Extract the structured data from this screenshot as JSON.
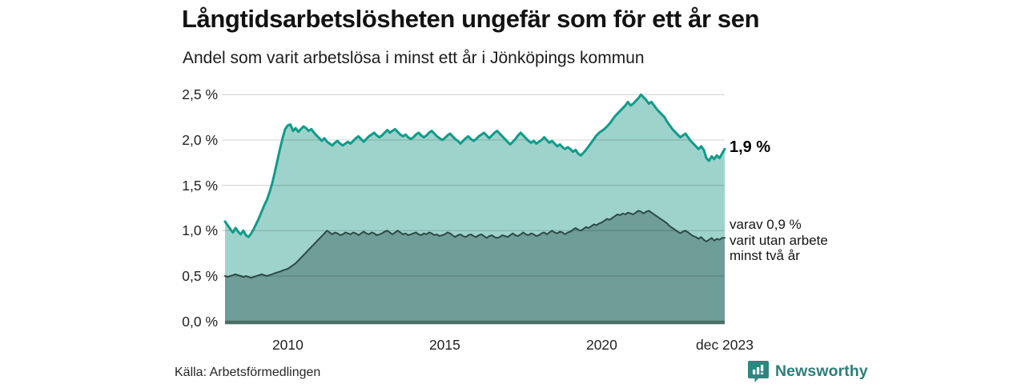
{
  "header": {
    "title": "Långtidsarbetslösheten ungefär som för ett år sen",
    "subtitle": "Andel som varit arbetslösa i minst ett år i Jönköpings kommun"
  },
  "annotations": {
    "primary": {
      "label": "1,9 %"
    },
    "secondary": {
      "lines": [
        "varav 0,9 %",
        "varit utan arbete",
        "minst två år"
      ]
    }
  },
  "footer": {
    "source": "Källa: Arbetsförmedlingen",
    "brand": "Newsworthy",
    "brand_icon": "bar-chart-speech-bubble-icon",
    "brand_color": "#2d7e78"
  },
  "chart_data": {
    "type": "area",
    "title": "Långtidsarbetslösheten ungefär som för ett år sen",
    "subtitle": "Andel som varit arbetslösa i minst ett år i Jönköpings kommun",
    "grid": true,
    "x_unit": "month",
    "x_start_year": 2008,
    "x_end_label": "dec 2023",
    "ylim": [
      0,
      2.5
    ],
    "yticks": [
      {
        "value": 0.0,
        "label": "0,0 %"
      },
      {
        "value": 0.5,
        "label": "0,5 %"
      },
      {
        "value": 1.0,
        "label": "1,0 %"
      },
      {
        "value": 1.5,
        "label": "1,5 %"
      },
      {
        "value": 2.0,
        "label": "2,0 %"
      },
      {
        "value": 2.5,
        "label": "2,5 %"
      }
    ],
    "xticks": [
      {
        "year": 2010.0,
        "label": "2010"
      },
      {
        "year": 2015.0,
        "label": "2015"
      },
      {
        "year": 2020.0,
        "label": "2020"
      },
      {
        "year": 2023.9167,
        "label": "dec 2023"
      }
    ],
    "colors": {
      "series1_line": "#109b8a",
      "series1_fill": "#9ed3cb",
      "series2_line": "#2d4b46",
      "series2_fill": "#6f9d98",
      "baseline": "#4a6e66",
      "gridline": "rgba(0,0,0,0.14)"
    },
    "series": [
      {
        "name": "Andel arbetslösa minst ett år",
        "last_value_label": "1,9 %",
        "last_value": 1.9,
        "values": [
          1.1,
          1.06,
          1.02,
          0.98,
          1.03,
          0.99,
          0.96,
          1.0,
          0.95,
          0.93,
          0.97,
          1.02,
          1.08,
          1.14,
          1.21,
          1.28,
          1.34,
          1.42,
          1.52,
          1.64,
          1.77,
          1.9,
          2.02,
          2.12,
          2.16,
          2.17,
          2.1,
          2.13,
          2.09,
          2.12,
          2.15,
          2.13,
          2.1,
          2.12,
          2.08,
          2.05,
          2.02,
          1.99,
          2.02,
          1.98,
          1.96,
          1.94,
          1.97,
          1.99,
          1.96,
          1.94,
          1.96,
          1.98,
          1.96,
          1.99,
          2.02,
          2.04,
          2.01,
          1.98,
          2.01,
          2.04,
          2.06,
          2.08,
          2.05,
          2.03,
          2.05,
          2.08,
          2.11,
          2.08,
          2.1,
          2.12,
          2.09,
          2.06,
          2.04,
          2.06,
          2.03,
          2.01,
          2.03,
          2.06,
          2.08,
          2.05,
          2.03,
          2.05,
          2.08,
          2.1,
          2.07,
          2.04,
          2.02,
          2.0,
          2.02,
          2.05,
          2.07,
          2.04,
          2.01,
          1.99,
          1.96,
          1.99,
          2.02,
          2.04,
          2.01,
          1.99,
          2.01,
          2.04,
          2.06,
          2.08,
          2.05,
          2.02,
          2.05,
          2.08,
          2.1,
          2.07,
          2.04,
          2.01,
          1.98,
          1.95,
          1.98,
          2.01,
          2.05,
          2.08,
          2.05,
          2.02,
          1.99,
          1.97,
          1.99,
          1.96,
          1.98,
          2.0,
          2.03,
          2.0,
          1.97,
          1.99,
          1.96,
          1.93,
          1.95,
          1.92,
          1.9,
          1.92,
          1.9,
          1.87,
          1.89,
          1.85,
          1.83,
          1.86,
          1.89,
          1.93,
          1.97,
          2.01,
          2.05,
          2.08,
          2.1,
          2.12,
          2.15,
          2.18,
          2.22,
          2.26,
          2.29,
          2.32,
          2.35,
          2.38,
          2.42,
          2.38,
          2.4,
          2.43,
          2.46,
          2.5,
          2.47,
          2.44,
          2.4,
          2.42,
          2.38,
          2.34,
          2.31,
          2.28,
          2.25,
          2.2,
          2.16,
          2.12,
          2.09,
          2.06,
          2.03,
          2.05,
          2.07,
          2.03,
          1.99,
          1.96,
          1.93,
          1.9,
          1.93,
          1.89,
          1.8,
          1.77,
          1.82,
          1.79,
          1.83,
          1.8,
          1.85,
          1.9
        ]
      },
      {
        "name": "varav utan arbete minst två år",
        "last_value_label": "0,9 %",
        "last_value": 0.9,
        "values": [
          0.5,
          0.49,
          0.5,
          0.51,
          0.52,
          0.51,
          0.5,
          0.49,
          0.5,
          0.49,
          0.48,
          0.49,
          0.5,
          0.51,
          0.52,
          0.51,
          0.5,
          0.51,
          0.52,
          0.53,
          0.54,
          0.55,
          0.56,
          0.57,
          0.58,
          0.6,
          0.62,
          0.64,
          0.67,
          0.7,
          0.73,
          0.76,
          0.79,
          0.82,
          0.85,
          0.88,
          0.91,
          0.94,
          0.97,
          1.0,
          0.98,
          0.96,
          0.98,
          0.97,
          0.95,
          0.96,
          0.98,
          0.97,
          0.96,
          0.98,
          0.97,
          0.95,
          0.97,
          0.99,
          0.97,
          0.96,
          0.98,
          0.97,
          0.95,
          0.96,
          0.97,
          0.99,
          1.0,
          0.98,
          0.96,
          0.98,
          1.0,
          0.98,
          0.96,
          0.97,
          0.95,
          0.96,
          0.97,
          0.98,
          0.96,
          0.95,
          0.97,
          0.96,
          0.98,
          0.97,
          0.95,
          0.96,
          0.94,
          0.95,
          0.96,
          0.98,
          0.97,
          0.95,
          0.93,
          0.95,
          0.96,
          0.94,
          0.93,
          0.95,
          0.96,
          0.94,
          0.93,
          0.95,
          0.96,
          0.94,
          0.92,
          0.94,
          0.95,
          0.93,
          0.92,
          0.93,
          0.95,
          0.94,
          0.93,
          0.95,
          0.97,
          0.95,
          0.94,
          0.96,
          0.98,
          0.96,
          0.95,
          0.97,
          0.96,
          0.94,
          0.95,
          0.97,
          0.98,
          0.96,
          0.98,
          1.0,
          0.98,
          0.97,
          0.99,
          0.98,
          0.96,
          0.98,
          0.99,
          1.01,
          1.03,
          1.01,
          1.0,
          1.02,
          1.04,
          1.03,
          1.05,
          1.07,
          1.06,
          1.08,
          1.09,
          1.11,
          1.13,
          1.12,
          1.14,
          1.16,
          1.18,
          1.17,
          1.19,
          1.18,
          1.2,
          1.19,
          1.18,
          1.2,
          1.22,
          1.21,
          1.19,
          1.21,
          1.22,
          1.2,
          1.18,
          1.16,
          1.14,
          1.12,
          1.1,
          1.08,
          1.05,
          1.03,
          1.01,
          0.99,
          0.97,
          0.99,
          1.0,
          0.98,
          0.96,
          0.94,
          0.93,
          0.91,
          0.93,
          0.9,
          0.88,
          0.9,
          0.92,
          0.89,
          0.91,
          0.9,
          0.92,
          0.92
        ]
      }
    ]
  }
}
